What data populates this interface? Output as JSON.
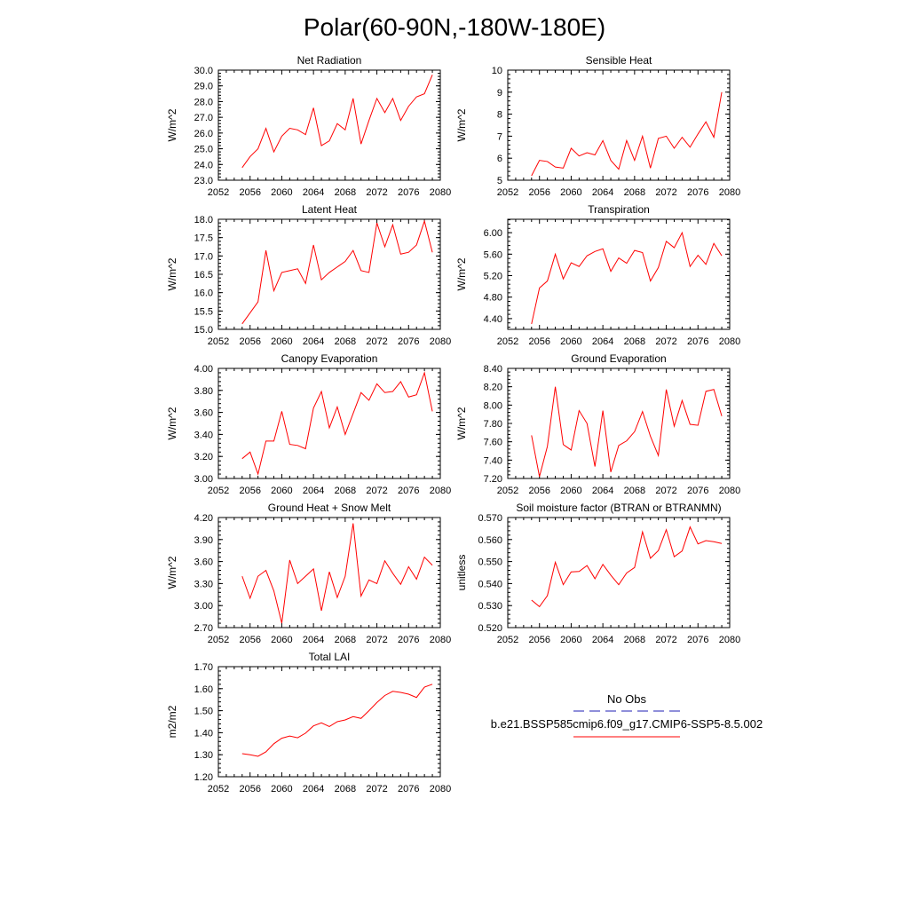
{
  "figure_title": "Polar(60-90N,-180W-180E)",
  "legend": {
    "entries": [
      {
        "label": "No Obs",
        "color": "#1f1fb4",
        "style": "dashed"
      },
      {
        "label": "b.e21.BSSP585cmip6.f09_g17.CMIP6-SSP5-8.5.002",
        "color": "#ff0000",
        "style": "solid"
      }
    ]
  },
  "chart_data": [
    {
      "type": "line",
      "title": "Net Radiation",
      "ylabel": "W/m^2",
      "xlim": [
        2052,
        2080
      ],
      "ylim": [
        23.0,
        30.0
      ],
      "xticks": [
        "2052",
        "2056",
        "2060",
        "2064",
        "2068",
        "2072",
        "2076",
        "2080"
      ],
      "yticks": [
        "23.0",
        "24.0",
        "25.0",
        "26.0",
        "27.0",
        "28.0",
        "29.0",
        "30.0"
      ],
      "x": [
        2055,
        2056,
        2057,
        2058,
        2059,
        2060,
        2061,
        2062,
        2063,
        2064,
        2065,
        2066,
        2067,
        2068,
        2069,
        2070,
        2071,
        2072,
        2073,
        2074,
        2075,
        2076,
        2077,
        2078,
        2079
      ],
      "series": [
        {
          "color": "#ff0000",
          "values": [
            23.8,
            24.5,
            25.0,
            26.3,
            24.8,
            25.8,
            26.3,
            26.2,
            25.9,
            27.6,
            25.2,
            25.5,
            26.6,
            26.2,
            28.2,
            25.3,
            26.8,
            28.2,
            27.3,
            28.2,
            26.8,
            27.7,
            28.3,
            28.5,
            29.7
          ]
        }
      ]
    },
    {
      "type": "line",
      "title": "Sensible Heat",
      "ylabel": "W/m^2",
      "xlim": [
        2052,
        2080
      ],
      "ylim": [
        5,
        10
      ],
      "xticks": [
        "2052",
        "2056",
        "2060",
        "2064",
        "2068",
        "2072",
        "2076",
        "2080"
      ],
      "yticks": [
        "5",
        "6",
        "7",
        "8",
        "9",
        "10"
      ],
      "x": [
        2055,
        2056,
        2057,
        2058,
        2059,
        2060,
        2061,
        2062,
        2063,
        2064,
        2065,
        2066,
        2067,
        2068,
        2069,
        2070,
        2071,
        2072,
        2073,
        2074,
        2075,
        2076,
        2077,
        2078,
        2079
      ],
      "series": [
        {
          "color": "#ff0000",
          "values": [
            5.2,
            5.9,
            5.85,
            5.6,
            5.55,
            6.45,
            6.1,
            6.25,
            6.15,
            6.8,
            5.9,
            5.5,
            6.8,
            5.9,
            7.0,
            5.55,
            6.9,
            7.0,
            6.45,
            6.95,
            6.5,
            7.1,
            7.65,
            6.95,
            9.0
          ]
        }
      ]
    },
    {
      "type": "line",
      "title": "Latent Heat",
      "ylabel": "W/m^2",
      "xlim": [
        2052,
        2080
      ],
      "ylim": [
        15.0,
        18.0
      ],
      "xticks": [
        "2052",
        "2056",
        "2060",
        "2064",
        "2068",
        "2072",
        "2076",
        "2080"
      ],
      "yticks": [
        "15.0",
        "15.5",
        "16.0",
        "16.5",
        "17.0",
        "17.5",
        "18.0"
      ],
      "x": [
        2055,
        2056,
        2057,
        2058,
        2059,
        2060,
        2061,
        2062,
        2063,
        2064,
        2065,
        2066,
        2067,
        2068,
        2069,
        2070,
        2071,
        2072,
        2073,
        2074,
        2075,
        2076,
        2077,
        2078,
        2079
      ],
      "series": [
        {
          "color": "#ff0000",
          "values": [
            15.15,
            15.45,
            15.75,
            17.15,
            16.05,
            16.55,
            16.6,
            16.65,
            16.25,
            17.3,
            16.35,
            16.55,
            16.7,
            16.85,
            17.15,
            16.6,
            16.55,
            17.9,
            17.25,
            17.85,
            17.05,
            17.1,
            17.3,
            17.95,
            17.1
          ]
        }
      ]
    },
    {
      "type": "line",
      "title": "Transpiration",
      "ylabel": "W/m^2",
      "xlim": [
        2052,
        2080
      ],
      "ylim": [
        4.2,
        6.25
      ],
      "xticks": [
        "2052",
        "2056",
        "2060",
        "2064",
        "2068",
        "2072",
        "2076",
        "2080"
      ],
      "yticks": [
        "4.40",
        "4.80",
        "5.20",
        "5.60",
        "6.00"
      ],
      "x": [
        2055,
        2056,
        2057,
        2058,
        2059,
        2060,
        2061,
        2062,
        2063,
        2064,
        2065,
        2066,
        2067,
        2068,
        2069,
        2070,
        2071,
        2072,
        2073,
        2074,
        2075,
        2076,
        2077,
        2078,
        2079
      ],
      "series": [
        {
          "color": "#ff0000",
          "values": [
            4.3,
            4.97,
            5.1,
            5.6,
            5.14,
            5.44,
            5.37,
            5.57,
            5.65,
            5.7,
            5.28,
            5.53,
            5.43,
            5.67,
            5.63,
            5.1,
            5.35,
            5.84,
            5.72,
            6.0,
            5.37,
            5.58,
            5.41,
            5.8,
            5.57
          ]
        }
      ]
    },
    {
      "type": "line",
      "title": "Canopy Evaporation",
      "ylabel": "W/m^2",
      "xlim": [
        2052,
        2080
      ],
      "ylim": [
        3.0,
        4.0
      ],
      "xticks": [
        "2052",
        "2056",
        "2060",
        "2064",
        "2068",
        "2072",
        "2076",
        "2080"
      ],
      "yticks": [
        "3.00",
        "3.20",
        "3.40",
        "3.60",
        "3.80",
        "4.00"
      ],
      "x": [
        2055,
        2056,
        2057,
        2058,
        2059,
        2060,
        2061,
        2062,
        2063,
        2064,
        2065,
        2066,
        2067,
        2068,
        2069,
        2070,
        2071,
        2072,
        2073,
        2074,
        2075,
        2076,
        2077,
        2078,
        2079
      ],
      "series": [
        {
          "color": "#ff0000",
          "values": [
            3.18,
            3.24,
            3.04,
            3.34,
            3.34,
            3.61,
            3.31,
            3.3,
            3.27,
            3.64,
            3.79,
            3.46,
            3.65,
            3.4,
            3.59,
            3.78,
            3.71,
            3.86,
            3.78,
            3.79,
            3.88,
            3.74,
            3.76,
            3.96,
            3.61
          ]
        }
      ]
    },
    {
      "type": "line",
      "title": "Ground Evaporation",
      "ylabel": "W/m^2",
      "xlim": [
        2052,
        2080
      ],
      "ylim": [
        7.2,
        8.4
      ],
      "xticks": [
        "2052",
        "2056",
        "2060",
        "2064",
        "2068",
        "2072",
        "2076",
        "2080"
      ],
      "yticks": [
        "7.20",
        "7.40",
        "7.60",
        "7.80",
        "8.00",
        "8.20",
        "8.40"
      ],
      "x": [
        2055,
        2056,
        2057,
        2058,
        2059,
        2060,
        2061,
        2062,
        2063,
        2064,
        2065,
        2066,
        2067,
        2068,
        2069,
        2070,
        2071,
        2072,
        2073,
        2074,
        2075,
        2076,
        2077,
        2078,
        2079
      ],
      "series": [
        {
          "color": "#ff0000",
          "values": [
            7.67,
            7.22,
            7.55,
            8.2,
            7.57,
            7.51,
            7.94,
            7.8,
            7.33,
            7.94,
            7.27,
            7.56,
            7.61,
            7.71,
            7.93,
            7.66,
            7.45,
            8.17,
            7.77,
            8.05,
            7.79,
            7.78,
            8.15,
            8.17,
            7.88
          ]
        }
      ]
    },
    {
      "type": "line",
      "title": "Ground Heat + Snow Melt",
      "ylabel": "W/m^2",
      "xlim": [
        2052,
        2080
      ],
      "ylim": [
        2.7,
        4.2
      ],
      "xticks": [
        "2052",
        "2056",
        "2060",
        "2064",
        "2068",
        "2072",
        "2076",
        "2080"
      ],
      "yticks": [
        "2.70",
        "3.00",
        "3.30",
        "3.60",
        "3.90",
        "4.20"
      ],
      "x": [
        2055,
        2056,
        2057,
        2058,
        2059,
        2060,
        2061,
        2062,
        2063,
        2064,
        2065,
        2066,
        2067,
        2068,
        2069,
        2070,
        2071,
        2072,
        2073,
        2074,
        2075,
        2076,
        2077,
        2078,
        2079
      ],
      "series": [
        {
          "color": "#ff0000",
          "values": [
            3.4,
            3.1,
            3.4,
            3.48,
            3.2,
            2.76,
            3.62,
            3.3,
            3.4,
            3.5,
            2.93,
            3.46,
            3.11,
            3.4,
            4.12,
            3.13,
            3.35,
            3.3,
            3.61,
            3.44,
            3.29,
            3.53,
            3.36,
            3.66,
            3.55
          ]
        }
      ]
    },
    {
      "type": "line",
      "title": "Soil moisture factor (BTRAN or BTRANMN)",
      "ylabel": "unitless",
      "xlim": [
        2052,
        2080
      ],
      "ylim": [
        0.52,
        0.57
      ],
      "xticks": [
        "2052",
        "2056",
        "2060",
        "2064",
        "2068",
        "2072",
        "2076",
        "2080"
      ],
      "yticks": [
        "0.520",
        "0.530",
        "0.540",
        "0.550",
        "0.560",
        "0.570"
      ],
      "x": [
        2055,
        2056,
        2057,
        2058,
        2059,
        2060,
        2061,
        2062,
        2063,
        2064,
        2065,
        2066,
        2067,
        2068,
        2069,
        2070,
        2071,
        2072,
        2073,
        2074,
        2075,
        2076,
        2077,
        2078,
        2079
      ],
      "series": [
        {
          "color": "#ff0000",
          "values": [
            0.5325,
            0.5295,
            0.5345,
            0.5497,
            0.5395,
            0.5453,
            0.5455,
            0.5482,
            0.5422,
            0.5487,
            0.5438,
            0.5395,
            0.5448,
            0.5473,
            0.5635,
            0.5515,
            0.555,
            0.5645,
            0.5522,
            0.5548,
            0.5657,
            0.558,
            0.5595,
            0.559,
            0.5582
          ]
        }
      ]
    },
    {
      "type": "line",
      "title": "Total LAI",
      "ylabel": "m2/m2",
      "xlim": [
        2052,
        2080
      ],
      "ylim": [
        1.2,
        1.7
      ],
      "xticks": [
        "2052",
        "2056",
        "2060",
        "2064",
        "2068",
        "2072",
        "2076",
        "2080"
      ],
      "yticks": [
        "1.20",
        "1.30",
        "1.40",
        "1.50",
        "1.60",
        "1.70"
      ],
      "x": [
        2055,
        2056,
        2057,
        2058,
        2059,
        2060,
        2061,
        2062,
        2063,
        2064,
        2065,
        2066,
        2067,
        2068,
        2069,
        2070,
        2071,
        2072,
        2073,
        2074,
        2075,
        2076,
        2077,
        2078,
        2079
      ],
      "series": [
        {
          "color": "#ff0000",
          "values": [
            1.305,
            1.3,
            1.293,
            1.313,
            1.35,
            1.375,
            1.385,
            1.377,
            1.398,
            1.431,
            1.445,
            1.428,
            1.45,
            1.458,
            1.473,
            1.465,
            1.5,
            1.537,
            1.569,
            1.588,
            1.583,
            1.575,
            1.56,
            1.607,
            1.62
          ]
        }
      ]
    }
  ]
}
